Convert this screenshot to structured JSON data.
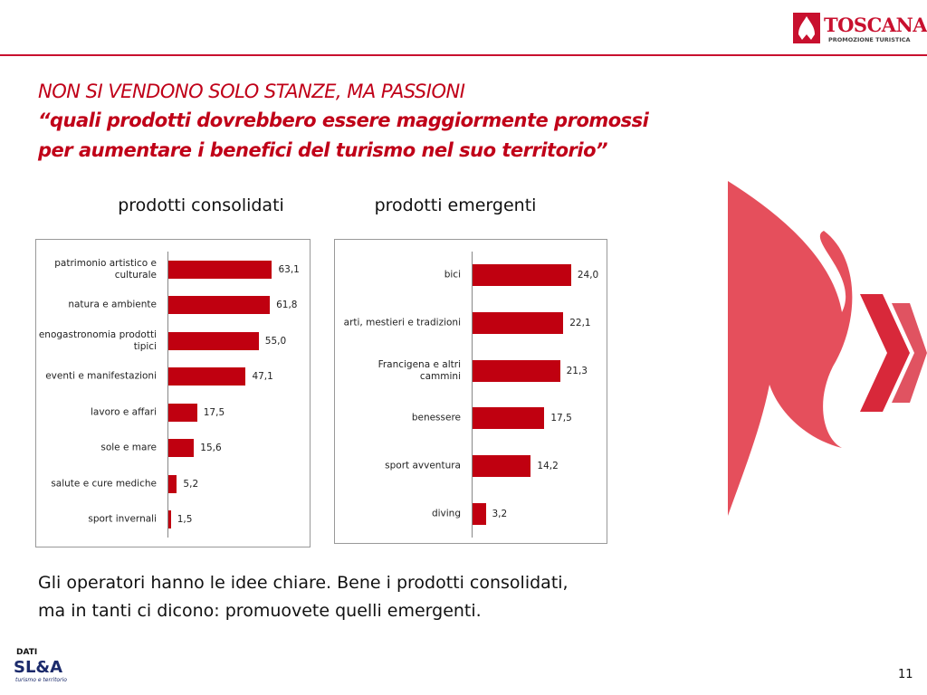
{
  "header": {
    "logo_name": "TOSCANA",
    "logo_tagline": "PROMOZIONE TURISTICA",
    "title": "NON SI VENDONO SOLO STANZE, MA PASSIONI",
    "subtitle_lines": [
      "“quali prodotti dovrebbero essere maggiormente promossi",
      "per aumentare i benefici del turismo nel suo territorio”"
    ]
  },
  "chart_data": [
    {
      "type": "bar",
      "orientation": "horizontal",
      "title": "prodotti consolidati",
      "color": "#c00010",
      "categories": [
        "patrimonio artistico e culturale",
        "natura e ambiente",
        "enogastronomia prodotti tipici",
        "eventi e manifestazioni",
        "lavoro e affari",
        "sole e mare",
        "salute e cure mediche",
        "sport invernali"
      ],
      "values": [
        63.1,
        61.8,
        55.0,
        47.1,
        17.5,
        15.6,
        5.2,
        1.5
      ],
      "value_labels": [
        "63,1",
        "61,8",
        "55,0",
        "47,1",
        "17,5",
        "15,6",
        "5,2",
        "1,5"
      ],
      "xlim": [
        0,
        70
      ]
    },
    {
      "type": "bar",
      "orientation": "horizontal",
      "title": "prodotti emergenti",
      "color": "#c00010",
      "categories": [
        "bici",
        "arti, mestieri e tradizioni",
        "Francigena e altri cammini",
        "benessere",
        "sport avventura",
        "diving"
      ],
      "values": [
        24.0,
        22.1,
        21.3,
        17.5,
        14.2,
        3.2
      ],
      "value_labels": [
        "24,0",
        "22,1",
        "21,3",
        "17,5",
        "14,2",
        "3,2"
      ],
      "xlim": [
        0,
        28
      ]
    }
  ],
  "conclusion_lines": [
    "Gli operatori hanno le idee chiare. Bene i prodotti consolidati,",
    "ma in tanti ci dicono: promuovete quelli emergenti."
  ],
  "footer": {
    "source_label": "DATI",
    "source_name": "SL&A",
    "source_tagline": "turismo e territorio",
    "page_number": "11"
  }
}
